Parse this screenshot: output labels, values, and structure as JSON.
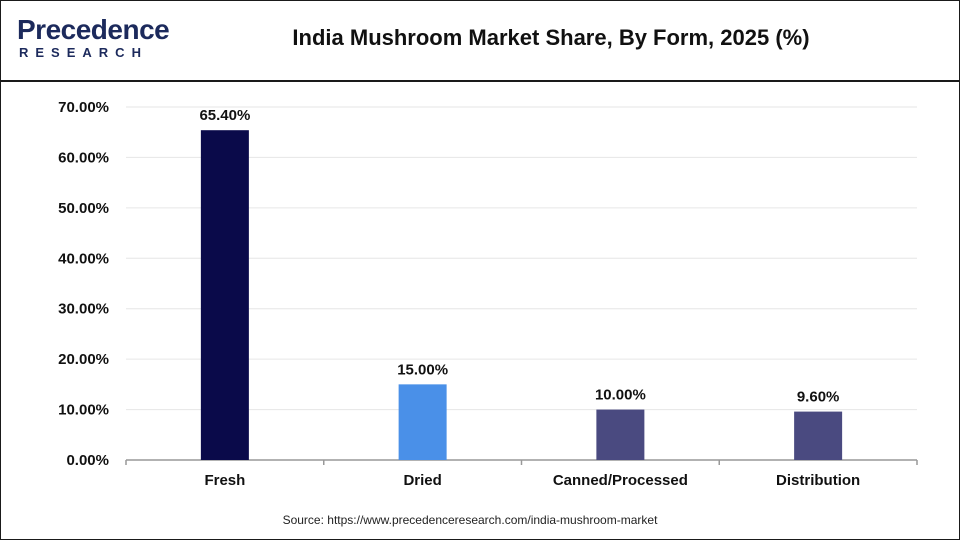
{
  "header": {
    "logo_main": "Precedence",
    "logo_sub": "RESEARCH",
    "title": "India Mushroom Market Share, By Form, 2025 (%)"
  },
  "footer": {
    "source": "Source: https://www.precedenceresearch.com/india-mushroom-market"
  },
  "chart_data": {
    "type": "bar",
    "title": "India Mushroom Market Share, By Form, 2025 (%)",
    "xlabel": "",
    "ylabel": "",
    "categories": [
      "Fresh",
      "Dried",
      "Canned/Processed",
      "Distribution"
    ],
    "values": [
      65.4,
      15.0,
      10.0,
      9.6
    ],
    "value_labels": [
      "65.40%",
      "15.00%",
      "10.00%",
      "9.60%"
    ],
    "bar_colors": [
      "#0a0a4a",
      "#4a90e8",
      "#4a4a80",
      "#4a4a80"
    ],
    "ylim": [
      0,
      70
    ],
    "yticks": [
      0,
      10,
      20,
      30,
      40,
      50,
      60,
      70
    ],
    "ytick_labels": [
      "0.00%",
      "10.00%",
      "20.00%",
      "30.00%",
      "40.00%",
      "50.00%",
      "60.00%",
      "70.00%"
    ],
    "grid": true,
    "legend": "none"
  }
}
